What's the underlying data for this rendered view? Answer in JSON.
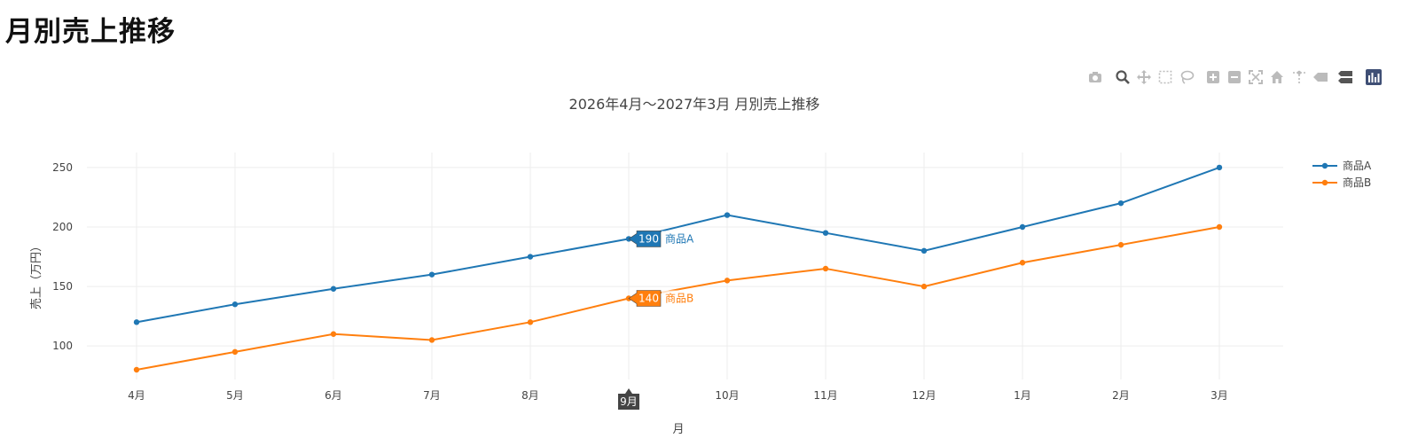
{
  "page": {
    "title": "月別売上推移"
  },
  "modebar": {
    "buttons": [
      {
        "name": "camera-icon"
      },
      {
        "name": "zoom-icon"
      },
      {
        "name": "pan-icon"
      },
      {
        "name": "box-select-icon"
      },
      {
        "name": "lasso-select-icon"
      },
      {
        "name": "zoom-in-icon"
      },
      {
        "name": "zoom-out-icon"
      },
      {
        "name": "autoscale-icon"
      },
      {
        "name": "reset-axes-icon"
      },
      {
        "name": "spike-lines-icon"
      },
      {
        "name": "hover-closest-icon"
      },
      {
        "name": "hover-compare-icon"
      },
      {
        "name": "plotly-logo-icon"
      }
    ]
  },
  "chart_data": {
    "type": "line",
    "title": "2026年4月〜2027年3月 月別売上推移",
    "xlabel": "月",
    "ylabel": "売上（万円）",
    "categories": [
      "4月",
      "5月",
      "6月",
      "7月",
      "8月",
      "9月",
      "10月",
      "11月",
      "12月",
      "1月",
      "2月",
      "3月"
    ],
    "series": [
      {
        "name": "商品A",
        "color": "#1f77b4",
        "values": [
          120,
          135,
          148,
          160,
          175,
          190,
          210,
          195,
          180,
          200,
          220,
          250
        ]
      },
      {
        "name": "商品B",
        "color": "#ff7f0e",
        "values": [
          80,
          95,
          110,
          105,
          120,
          140,
          155,
          165,
          150,
          170,
          185,
          200
        ]
      }
    ],
    "ylim": [
      71.8,
      262.6
    ],
    "yticks": [
      100,
      150,
      200,
      250
    ],
    "grid": true,
    "legend_position": "top-right",
    "hover": {
      "category_index": 5,
      "x_label": "9月",
      "labels": [
        {
          "series": "商品A",
          "value": "190",
          "name": "商品A"
        },
        {
          "series": "商品B",
          "value": "140",
          "name": "商品B"
        }
      ]
    }
  }
}
